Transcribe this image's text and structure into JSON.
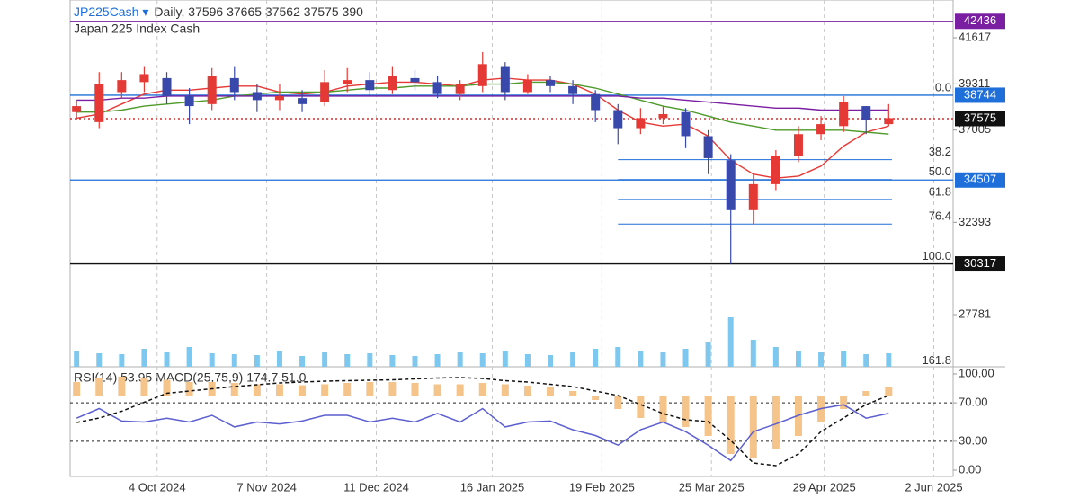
{
  "chart_data": [
    {
      "type": "candlestick",
      "title": "JP225Cash",
      "title_marker": "▾",
      "subtitle": "Daily, 37596 37665 37562 37575 390",
      "description": "Japan 225 Index Cash",
      "x": [
        "2024-09-09",
        "2024-09-16",
        "2024-09-23",
        "2024-09-30",
        "2024-10-07",
        "2024-10-14",
        "2024-10-21",
        "2024-10-28",
        "2024-11-04",
        "2024-11-11",
        "2024-11-18",
        "2024-11-25",
        "2024-12-02",
        "2024-12-09",
        "2024-12-16",
        "2024-12-23",
        "2024-12-30",
        "2025-01-06",
        "2025-01-13",
        "2025-01-20",
        "2025-01-27",
        "2025-02-03",
        "2025-02-10",
        "2025-02-17",
        "2025-02-24",
        "2025-03-03",
        "2025-03-10",
        "2025-03-17",
        "2025-03-24",
        "2025-03-31",
        "2025-04-07",
        "2025-04-14",
        "2025-04-21",
        "2025-04-28",
        "2025-05-05",
        "2025-05-12",
        "2025-05-19"
      ],
      "open": [
        37900,
        37400,
        38900,
        39400,
        39600,
        38700,
        38300,
        39600,
        38900,
        38500,
        38600,
        38400,
        39300,
        39500,
        39000,
        39600,
        39400,
        38800,
        39200,
        40200,
        38900,
        39500,
        39200,
        38800,
        38000,
        37100,
        37600,
        37900,
        36700,
        35500,
        33000,
        34300,
        35700,
        36800,
        37200,
        38200,
        37300
      ],
      "high": [
        38500,
        39900,
        39900,
        40200,
        39900,
        39100,
        40100,
        40200,
        39300,
        39300,
        39000,
        40000,
        40100,
        39900,
        40200,
        40000,
        39700,
        39500,
        40900,
        40400,
        39800,
        39700,
        39500,
        39000,
        38300,
        38100,
        38200,
        38100,
        37000,
        35800,
        34800,
        36000,
        37200,
        37700,
        38700,
        38200,
        38300
      ],
      "low": [
        37500,
        37100,
        38600,
        38900,
        38300,
        37300,
        38000,
        38500,
        37900,
        38000,
        37900,
        38200,
        38900,
        38700,
        38800,
        39000,
        38600,
        38500,
        38900,
        38500,
        38800,
        38900,
        38300,
        37400,
        36300,
        36800,
        37300,
        36100,
        34800,
        30317,
        32300,
        34000,
        35400,
        36500,
        36900,
        36800,
        37200
      ],
      "close": [
        38200,
        39300,
        39500,
        39800,
        38700,
        38200,
        39700,
        38900,
        38500,
        38700,
        38300,
        39400,
        39500,
        39000,
        39700,
        39400,
        38800,
        39300,
        40300,
        38900,
        39500,
        39200,
        38800,
        38000,
        37100,
        37600,
        37800,
        36700,
        35600,
        33000,
        34300,
        35700,
        36800,
        37300,
        38400,
        37500,
        37600
      ],
      "up_color": "#e53935",
      "down_color": "#3949ab",
      "overlays": [
        {
          "color": "#e53935",
          "values": [
            37600,
            37800,
            38300,
            38800,
            39000,
            39000,
            39100,
            39200,
            39200,
            38900,
            38800,
            38900,
            39200,
            39300,
            39400,
            39400,
            39300,
            39200,
            39500,
            39600,
            39500,
            39500,
            39300,
            38800,
            38000,
            37400,
            37200,
            37300,
            36700,
            35500,
            34800,
            34600,
            34700,
            35200,
            36200,
            36900,
            37200
          ]
        },
        {
          "color": "#4e9a2a",
          "values": [
            37900,
            37900,
            38000,
            38200,
            38300,
            38400,
            38500,
            38700,
            38800,
            38900,
            38900,
            38900,
            39000,
            39100,
            39100,
            39200,
            39200,
            39200,
            39300,
            39300,
            39400,
            39400,
            39300,
            39100,
            38800,
            38500,
            38200,
            38000,
            37700,
            37400,
            37200,
            37000,
            37000,
            37000,
            37000,
            36900,
            36800
          ]
        },
        {
          "color": "#7b1fa2",
          "values": [
            38500,
            38500,
            38600,
            38600,
            38700,
            38700,
            38700,
            38700,
            38700,
            38700,
            38700,
            38700,
            38700,
            38700,
            38700,
            38700,
            38700,
            38700,
            38700,
            38700,
            38700,
            38700,
            38700,
            38700,
            38700,
            38600,
            38600,
            38500,
            38400,
            38300,
            38200,
            38100,
            38100,
            38000,
            38000,
            38000,
            38000
          ]
        }
      ],
      "volume": {
        "color": "#7ec8f0",
        "values": [
          18,
          15,
          14,
          20,
          16,
          22,
          15,
          14,
          13,
          17,
          12,
          16,
          14,
          15,
          13,
          12,
          14,
          16,
          15,
          18,
          14,
          13,
          16,
          20,
          22,
          18,
          16,
          20,
          28,
          55,
          30,
          22,
          18,
          16,
          17,
          14,
          15
        ]
      },
      "xlim": [
        "2024-09-07",
        "2025-06-08"
      ],
      "xticks": [
        {
          "value": "2024-10-04",
          "label": "4 Oct 2024"
        },
        {
          "value": "2024-11-07",
          "label": "7 Nov 2024"
        },
        {
          "value": "2024-12-11",
          "label": "11 Dec 2024"
        },
        {
          "value": "2025-01-16",
          "label": "16 Jan 2025"
        },
        {
          "value": "2025-02-19",
          "label": "19 Feb 2025"
        },
        {
          "value": "2025-03-25",
          "label": "25 Mar 2025"
        },
        {
          "value": "2025-04-29",
          "label": "29 Apr 2025"
        },
        {
          "value": "2025-06-02",
          "label": "2 Jun 2025"
        }
      ],
      "ylim": [
        25175,
        43504
      ],
      "yticks": [
        41617,
        39311,
        37005,
        32393,
        27781
      ],
      "levels": [
        {
          "value": 42436,
          "color": "#7b1fa2",
          "label_color": "#7b1fa2"
        },
        {
          "value": 38744,
          "color": "#1e6fd9",
          "label_color": "#1e6fd9"
        },
        {
          "value": 37575,
          "color": "#d32f2f",
          "label_color": "#111111",
          "style": "dotted"
        },
        {
          "value": 34507,
          "color": "#1e6fd9",
          "label_color": "#1e6fd9"
        },
        {
          "value": 30317,
          "color": "#111111",
          "label_color": "#111111"
        }
      ],
      "fib": {
        "high": 38744,
        "low": 30317,
        "x": [
          "2025-02-24",
          "2025-05-20"
        ],
        "color": "#1e6fd9",
        "levels": [
          {
            "value": 0,
            "label": "0.0"
          },
          38.2,
          {
            "value": 50,
            "label": "50.0"
          },
          61.8,
          76.4,
          {
            "value": 100,
            "label": "100.0"
          },
          161.8
        ]
      }
    },
    {
      "type": "line",
      "title": "RSI(14) 53.95 MACD(25,75,9) 174.7 51.0",
      "ylim": [
        0,
        100
      ],
      "yticks": [
        {
          "value": 100,
          "label": "100.00"
        },
        {
          "value": 70,
          "label": "70.00"
        },
        {
          "value": 30,
          "label": "30.00"
        },
        {
          "value": 0,
          "label": "0.00"
        }
      ],
      "guides": [
        70,
        30
      ],
      "y2lim": [
        -1660,
        480
      ],
      "series": [
        {
          "type": "bar",
          "axis": "y2",
          "color": "#f5c48a",
          "values": [
            300,
            400,
            420,
            400,
            350,
            300,
            300,
            280,
            250,
            250,
            230,
            250,
            280,
            300,
            300,
            280,
            250,
            250,
            280,
            250,
            220,
            180,
            100,
            -100,
            -300,
            -500,
            -600,
            -700,
            -900,
            -1300,
            -1400,
            -1200,
            -900,
            -600,
            -300,
            100,
            200
          ]
        },
        {
          "type": "line",
          "color": "#5c5fcf",
          "values": [
            54,
            64,
            51,
            50,
            54,
            50,
            57,
            45,
            50,
            48,
            51,
            57,
            57,
            50,
            54,
            50,
            59,
            50,
            64,
            45,
            50,
            51,
            42,
            36,
            26,
            42,
            50,
            40,
            26,
            10,
            40,
            48,
            57,
            64,
            68,
            54,
            59
          ]
        },
        {
          "type": "line",
          "axis": "y2",
          "color": "#111111",
          "dash": true,
          "values": [
            -600,
            -500,
            -350,
            -150,
            50,
            100,
            150,
            200,
            240,
            280,
            300,
            320,
            330,
            340,
            350,
            370,
            390,
            400,
            380,
            330,
            300,
            250,
            200,
            100,
            0,
            -200,
            -400,
            -540,
            -580,
            -1000,
            -1500,
            -1560,
            -1300,
            -800,
            -500,
            -200,
            0
          ]
        }
      ]
    }
  ]
}
